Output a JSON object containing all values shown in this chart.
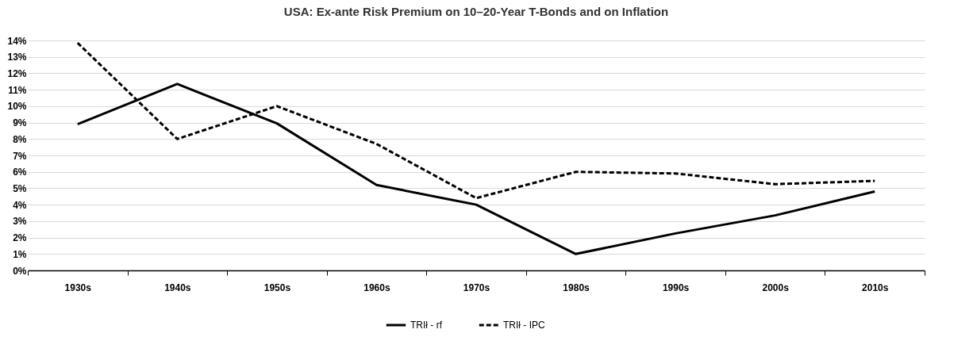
{
  "chart_data": {
    "type": "line",
    "title": "USA: Ex-ante Risk Premium on 10–20-Year T-Bonds and on Inflation",
    "categories": [
      "1930s",
      "1940s",
      "1950s",
      "1960s",
      "1970s",
      "1980s",
      "1990s",
      "2000s",
      "2010s"
    ],
    "series": [
      {
        "name": "TRIł - rf",
        "color": "#000000",
        "line_style": "solid",
        "values": [
          8.9,
          11.35,
          8.95,
          5.2,
          4.0,
          1.0,
          2.25,
          3.35,
          4.8
        ]
      },
      {
        "name": "TRIł - IPC",
        "color": "#000000",
        "line_style": "dashed",
        "values": [
          13.85,
          8.0,
          10.0,
          7.7,
          4.4,
          6.0,
          5.9,
          5.25,
          5.45
        ]
      }
    ],
    "ylim": [
      0,
      14
    ],
    "yticks": [
      {
        "value": 0,
        "label": "0%"
      },
      {
        "value": 1,
        "label": "1%"
      },
      {
        "value": 2,
        "label": "2%"
      },
      {
        "value": 3,
        "label": "3%"
      },
      {
        "value": 4,
        "label": "4%"
      },
      {
        "value": 5,
        "label": "5%"
      },
      {
        "value": 6,
        "label": "6%"
      },
      {
        "value": 7,
        "label": "7%"
      },
      {
        "value": 8,
        "label": "8%"
      },
      {
        "value": 9,
        "label": "9%"
      },
      {
        "value": 10,
        "label": "10%"
      },
      {
        "value": 11,
        "label": "11%"
      },
      {
        "value": 12,
        "label": "12%"
      },
      {
        "value": 13,
        "label": "13%"
      },
      {
        "value": 14,
        "label": "14%"
      }
    ],
    "grid": "y",
    "legend": "bottom",
    "marker": "none"
  }
}
